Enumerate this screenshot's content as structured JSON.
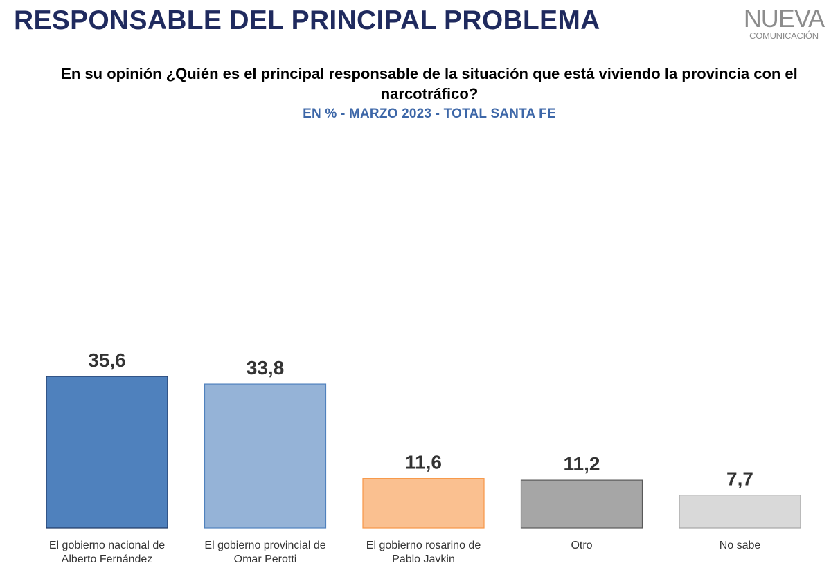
{
  "header": {
    "title": "RESPONSABLE DEL PRINCIPAL PROBLEMA",
    "logo_word": "NUEVA",
    "logo_sub": "COMUNICACIÓN"
  },
  "chart_data": {
    "type": "bar",
    "title": "En su opinión ¿Quién es el principal responsable de la situación que está viviendo la provincia con el narcotráfico?",
    "subtitle": "EN % - MARZO 2023 - TOTAL SANTA FE",
    "categories": [
      [
        "El gobierno nacional de",
        "Alberto Fernández"
      ],
      [
        "El gobierno provincial de",
        "Omar Perotti"
      ],
      [
        "El gobierno rosarino de",
        "Pablo Javkin"
      ],
      [
        "Otro"
      ],
      [
        "No sabe"
      ]
    ],
    "values": [
      35.6,
      33.8,
      11.6,
      11.2,
      7.7
    ],
    "value_labels": [
      "35,6",
      "33,8",
      "11,6",
      "11,2",
      "7,7"
    ],
    "colors": [
      "#4f81bd",
      "#95b3d7",
      "#fac090",
      "#a6a6a6",
      "#d9d9d9"
    ],
    "border_colors": [
      "#1f3864",
      "#4f81bd",
      "#f79646",
      "#595959",
      "#a6a6a6"
    ],
    "ylim": [
      0,
      40
    ],
    "grid": false,
    "legend": "none"
  }
}
